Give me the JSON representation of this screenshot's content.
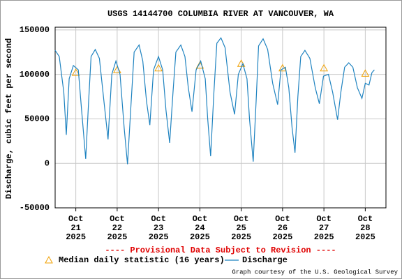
{
  "chart_data": {
    "type": "line",
    "title": "USGS 14144700 COLUMBIA RIVER AT VANCOUVER, WA",
    "y_label": "Discharge, cubic feet per second",
    "annotation": "---- Provisional Data Subject to Revision ----",
    "credit": "Graph courtesy of the U.S. Geological Survey",
    "xlim": [
      20.5,
      28.5
    ],
    "xticks": [
      {
        "value": 21,
        "label": "Oct 21 2025"
      },
      {
        "value": 22,
        "label": "Oct 22 2025"
      },
      {
        "value": 23,
        "label": "Oct 23 2025"
      },
      {
        "value": 24,
        "label": "Oct 24 2025"
      },
      {
        "value": 25,
        "label": "Oct 25 2025"
      },
      {
        "value": 26,
        "label": "Oct 26 2025"
      },
      {
        "value": 27,
        "label": "Oct 27 2025"
      },
      {
        "value": 28,
        "label": "Oct 28 2025"
      }
    ],
    "ylim": [
      -50000,
      153000
    ],
    "yticks": [
      -50000,
      0,
      50000,
      100000,
      150000
    ],
    "grid": true,
    "series": [
      {
        "name": "Median daily statistic (16 years)",
        "color": "#f0a000",
        "marker": "triangle",
        "x": [
          21,
          22,
          23,
          24,
          25,
          26,
          27,
          28
        ],
        "values": [
          102000,
          105000,
          107000,
          110000,
          112000,
          107000,
          107000,
          101000
        ]
      },
      {
        "name": "Discharge",
        "color": "#1f83c0",
        "x": [
          20.5,
          20.6,
          20.71,
          20.77,
          20.84,
          20.94,
          21.06,
          21.14,
          21.24,
          21.31,
          21.37,
          21.47,
          21.57,
          21.68,
          21.78,
          21.87,
          21.97,
          22.07,
          22.17,
          22.25,
          22.34,
          22.41,
          22.53,
          22.62,
          22.71,
          22.79,
          22.88,
          23.0,
          23.1,
          23.18,
          23.27,
          23.35,
          23.42,
          23.54,
          23.64,
          23.72,
          23.81,
          23.91,
          24.02,
          24.13,
          24.19,
          24.26,
          24.34,
          24.41,
          24.51,
          24.61,
          24.73,
          24.84,
          24.93,
          25.04,
          25.14,
          25.2,
          25.29,
          25.36,
          25.42,
          25.53,
          25.64,
          25.76,
          25.88,
          25.96,
          26.07,
          26.15,
          26.23,
          26.3,
          26.37,
          26.44,
          26.54,
          26.66,
          26.79,
          26.89,
          26.99,
          27.11,
          27.21,
          27.33,
          27.41,
          27.5,
          27.6,
          27.7,
          27.81,
          27.92,
          28.0,
          28.09,
          28.16,
          28.22
        ],
        "values": [
          127000,
          120000,
          80000,
          32000,
          95000,
          110000,
          105000,
          60000,
          5000,
          70000,
          120000,
          128000,
          118000,
          70000,
          27000,
          100000,
          115000,
          100000,
          40000,
          -1000,
          70000,
          125000,
          133000,
          115000,
          70000,
          43000,
          105000,
          120000,
          105000,
          60000,
          23000,
          80000,
          125000,
          133000,
          120000,
          85000,
          58000,
          105000,
          115000,
          95000,
          50000,
          8000,
          80000,
          135000,
          141000,
          130000,
          80000,
          55000,
          100000,
          112000,
          95000,
          50000,
          2000,
          70000,
          132000,
          140000,
          128000,
          90000,
          66000,
          105000,
          108000,
          85000,
          40000,
          12000,
          75000,
          120000,
          127000,
          118000,
          85000,
          67000,
          98000,
          100000,
          80000,
          49000,
          80000,
          108000,
          113000,
          108000,
          85000,
          73000,
          90000,
          88000,
          102000,
          105000
        ]
      }
    ]
  }
}
